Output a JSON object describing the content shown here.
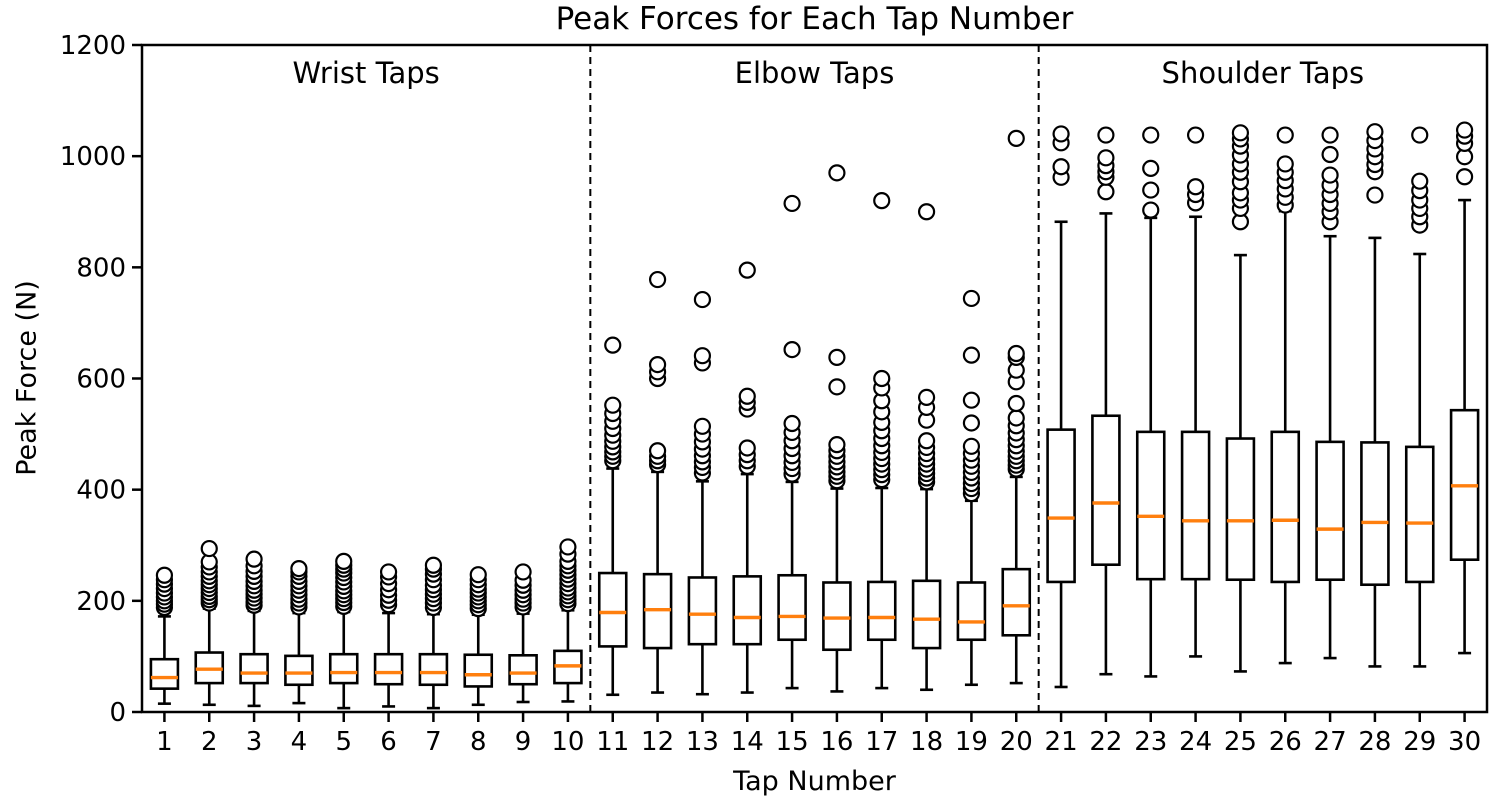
{
  "chart_data": {
    "type": "box",
    "title": "Peak Forces for Each Tap Number",
    "xlabel": "Tap Number",
    "ylabel": "Peak Force (N)",
    "ylim": [
      0,
      1200
    ],
    "yticks": [
      0,
      200,
      400,
      600,
      800,
      1000,
      1200
    ],
    "grid": false,
    "legend": "none",
    "box_color": "#000000",
    "median_color": "#ff7f0e",
    "separator_style": "dashed",
    "separators_after_tap": [
      10,
      20
    ],
    "sections": [
      {
        "label": "Wrist Taps",
        "from_tap": 1,
        "to_tap": 10
      },
      {
        "label": "Elbow Taps",
        "from_tap": 11,
        "to_tap": 20
      },
      {
        "label": "Shoulder Taps",
        "from_tap": 21,
        "to_tap": 30
      }
    ],
    "boxes": [
      {
        "tap": 1,
        "whislo": 15,
        "q1": 42,
        "med": 62,
        "q3": 95,
        "whishi": 172,
        "fliers": [
          188,
          194,
          200,
          207,
          214,
          222,
          230,
          238,
          246
        ]
      },
      {
        "tap": 2,
        "whislo": 13,
        "q1": 52,
        "med": 77,
        "q3": 107,
        "whishi": 186,
        "fliers": [
          196,
          202,
          208,
          215,
          222,
          229,
          236,
          244,
          252,
          261,
          270,
          294
        ]
      },
      {
        "tap": 3,
        "whislo": 11,
        "q1": 52,
        "med": 70,
        "q3": 104,
        "whishi": 182,
        "fliers": [
          192,
          198,
          205,
          212,
          219,
          227,
          235,
          244,
          253,
          263,
          275
        ]
      },
      {
        "tap": 4,
        "whislo": 16,
        "q1": 49,
        "med": 70,
        "q3": 101,
        "whishi": 178,
        "fliers": [
          189,
          196,
          203,
          211,
          219,
          227,
          235,
          244,
          252,
          258
        ]
      },
      {
        "tap": 5,
        "whislo": 7,
        "q1": 52,
        "med": 71,
        "q3": 104,
        "whishi": 180,
        "fliers": [
          190,
          197,
          204,
          211,
          218,
          226,
          234,
          242,
          250,
          257,
          264,
          271
        ]
      },
      {
        "tap": 6,
        "whislo": 10,
        "q1": 50,
        "med": 71,
        "q3": 104,
        "whishi": 178,
        "fliers": [
          193,
          201,
          210,
          220,
          231,
          243,
          252
        ]
      },
      {
        "tap": 7,
        "whislo": 7,
        "q1": 49,
        "med": 71,
        "q3": 104,
        "whishi": 176,
        "fliers": [
          188,
          196,
          204,
          212,
          220,
          228,
          238,
          248,
          257,
          264
        ]
      },
      {
        "tap": 8,
        "whislo": 13,
        "q1": 46,
        "med": 67,
        "q3": 103,
        "whishi": 175,
        "fliers": [
          186,
          193,
          200,
          207,
          214,
          221,
          229,
          238,
          247
        ]
      },
      {
        "tap": 9,
        "whislo": 18,
        "q1": 50,
        "med": 70,
        "q3": 102,
        "whishi": 177,
        "fliers": [
          189,
          196,
          203,
          211,
          219,
          228,
          237,
          252
        ]
      },
      {
        "tap": 10,
        "whislo": 19,
        "q1": 52,
        "med": 83,
        "q3": 110,
        "whishi": 183,
        "fliers": [
          195,
          202,
          209,
          216,
          223,
          231,
          239,
          247,
          255,
          263,
          271,
          284,
          297
        ]
      },
      {
        "tap": 11,
        "whislo": 31,
        "q1": 118,
        "med": 179,
        "q3": 250,
        "whishi": 438,
        "fliers": [
          452,
          460,
          468,
          477,
          487,
          498,
          510,
          523,
          537,
          552,
          660
        ]
      },
      {
        "tap": 12,
        "whislo": 35,
        "q1": 115,
        "med": 184,
        "q3": 248,
        "whishi": 432,
        "fliers": [
          445,
          452,
          460,
          470,
          600,
          612,
          625,
          778
        ]
      },
      {
        "tap": 13,
        "whislo": 32,
        "q1": 122,
        "med": 176,
        "q3": 242,
        "whishi": 415,
        "fliers": [
          430,
          440,
          450,
          461,
          473,
          486,
          500,
          514,
          628,
          641,
          742
        ]
      },
      {
        "tap": 14,
        "whislo": 35,
        "q1": 122,
        "med": 170,
        "q3": 244,
        "whishi": 428,
        "fliers": [
          442,
          452,
          463,
          475,
          545,
          557,
          568,
          795
        ]
      },
      {
        "tap": 15,
        "whislo": 43,
        "q1": 130,
        "med": 172,
        "q3": 246,
        "whishi": 414,
        "fliers": [
          428,
          438,
          449,
          461,
          474,
          488,
          503,
          519,
          652,
          915
        ]
      },
      {
        "tap": 16,
        "whislo": 37,
        "q1": 112,
        "med": 169,
        "q3": 233,
        "whishi": 402,
        "fliers": [
          416,
          424,
          432,
          441,
          450,
          460,
          470,
          481,
          585,
          638,
          970
        ]
      },
      {
        "tap": 17,
        "whislo": 43,
        "q1": 130,
        "med": 170,
        "q3": 234,
        "whishi": 403,
        "fliers": [
          418,
          427,
          436,
          446,
          456,
          467,
          479,
          492,
          506,
          521,
          540,
          560,
          583,
          600,
          920
        ]
      },
      {
        "tap": 18,
        "whislo": 40,
        "q1": 115,
        "med": 167,
        "q3": 236,
        "whishi": 401,
        "fliers": [
          414,
          421,
          429,
          437,
          446,
          455,
          465,
          476,
          488,
          525,
          548,
          566,
          900
        ]
      },
      {
        "tap": 19,
        "whislo": 49,
        "q1": 130,
        "med": 162,
        "q3": 233,
        "whishi": 380,
        "fliers": [
          393,
          402,
          411,
          421,
          431,
          442,
          453,
          465,
          478,
          520,
          561,
          642,
          744
        ]
      },
      {
        "tap": 20,
        "whislo": 52,
        "q1": 138,
        "med": 191,
        "q3": 257,
        "whishi": 423,
        "fliers": [
          437,
          444,
          452,
          460,
          469,
          479,
          490,
          502,
          515,
          529,
          555,
          594,
          615,
          638,
          645,
          1032
        ]
      },
      {
        "tap": 21,
        "whislo": 45,
        "q1": 234,
        "med": 349,
        "q3": 508,
        "whishi": 882,
        "fliers": [
          962,
          981,
          1024,
          1040
        ]
      },
      {
        "tap": 22,
        "whislo": 68,
        "q1": 265,
        "med": 376,
        "q3": 533,
        "whishi": 897,
        "fliers": [
          936,
          962,
          972,
          983,
          997,
          1038
        ]
      },
      {
        "tap": 23,
        "whislo": 64,
        "q1": 239,
        "med": 352,
        "q3": 504,
        "whishi": 889,
        "fliers": [
          903,
          939,
          978,
          1038
        ]
      },
      {
        "tap": 24,
        "whislo": 100,
        "q1": 239,
        "med": 344,
        "q3": 504,
        "whishi": 891,
        "fliers": [
          916,
          931,
          945,
          1038
        ]
      },
      {
        "tap": 25,
        "whislo": 73,
        "q1": 238,
        "med": 344,
        "q3": 492,
        "whishi": 822,
        "fliers": [
          882,
          906,
          921,
          934,
          954,
          971,
          986,
          1002,
          1018,
          1031,
          1042
        ]
      },
      {
        "tap": 26,
        "whislo": 88,
        "q1": 234,
        "med": 345,
        "q3": 504,
        "whishi": 901,
        "fliers": [
          912,
          926,
          941,
          956,
          971,
          986,
          1038
        ]
      },
      {
        "tap": 27,
        "whislo": 97,
        "q1": 238,
        "med": 329,
        "q3": 486,
        "whishi": 856,
        "fliers": [
          882,
          900,
          915,
          931,
          948,
          966,
          1003,
          1038
        ]
      },
      {
        "tap": 28,
        "whislo": 82,
        "q1": 229,
        "med": 341,
        "q3": 485,
        "whishi": 853,
        "fliers": [
          930,
          972,
          985,
          999,
          1013,
          1028,
          1044
        ]
      },
      {
        "tap": 29,
        "whislo": 82,
        "q1": 234,
        "med": 340,
        "q3": 477,
        "whishi": 824,
        "fliers": [
          876,
          891,
          906,
          921,
          938,
          955,
          1038
        ]
      },
      {
        "tap": 30,
        "whislo": 106,
        "q1": 274,
        "med": 407,
        "q3": 543,
        "whishi": 921,
        "fliers": [
          963,
          999,
          1023,
          1036,
          1047
        ]
      }
    ]
  }
}
